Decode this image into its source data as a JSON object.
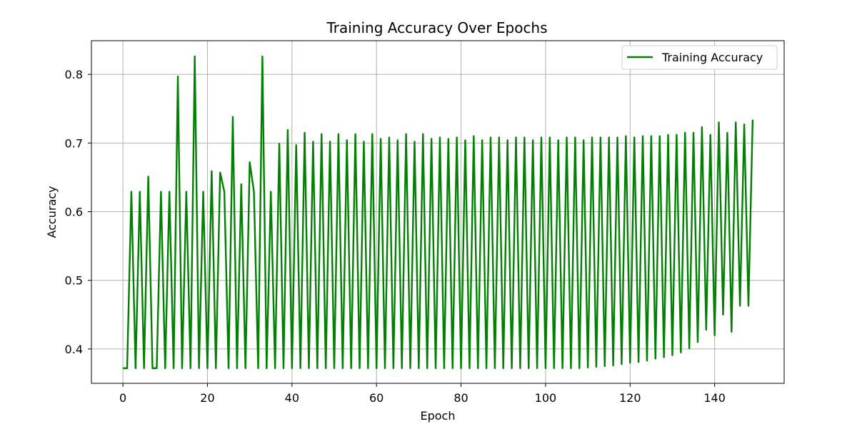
{
  "chart_data": {
    "type": "line",
    "title": "Training Accuracy Over Epochs",
    "xlabel": "Epoch",
    "ylabel": "Accuracy",
    "xlim": [
      -7.45,
      156.45
    ],
    "ylim": [
      0.35,
      0.849
    ],
    "x_ticks": [
      0,
      20,
      40,
      60,
      80,
      100,
      120,
      140
    ],
    "y_ticks": [
      0.4,
      0.5,
      0.6,
      0.7,
      0.8
    ],
    "grid": true,
    "legend_position": "top-right",
    "series": [
      {
        "name": "Training Accuracy",
        "color": "#008000",
        "x": [
          0,
          1,
          2,
          3,
          4,
          5,
          6,
          7,
          8,
          9,
          10,
          11,
          12,
          13,
          14,
          15,
          16,
          17,
          18,
          19,
          20,
          21,
          22,
          23,
          24,
          25,
          26,
          27,
          28,
          29,
          30,
          31,
          32,
          33,
          34,
          35,
          36,
          37,
          38,
          39,
          40,
          41,
          42,
          43,
          44,
          45,
          46,
          47,
          48,
          49,
          50,
          51,
          52,
          53,
          54,
          55,
          56,
          57,
          58,
          59,
          60,
          61,
          62,
          63,
          64,
          65,
          66,
          67,
          68,
          69,
          70,
          71,
          72,
          73,
          74,
          75,
          76,
          77,
          78,
          79,
          80,
          81,
          82,
          83,
          84,
          85,
          86,
          87,
          88,
          89,
          90,
          91,
          92,
          93,
          94,
          95,
          96,
          97,
          98,
          99,
          100,
          101,
          102,
          103,
          104,
          105,
          106,
          107,
          108,
          109,
          110,
          111,
          112,
          113,
          114,
          115,
          116,
          117,
          118,
          119,
          120,
          121,
          122,
          123,
          124,
          125,
          126,
          127,
          128,
          129,
          130,
          131,
          132,
          133,
          134,
          135,
          136,
          137,
          138,
          139,
          140,
          141,
          142,
          143,
          144,
          145,
          146,
          147,
          148,
          149
        ],
        "values": [
          0.372,
          0.372,
          0.629,
          0.372,
          0.629,
          0.372,
          0.651,
          0.372,
          0.372,
          0.629,
          0.372,
          0.629,
          0.372,
          0.797,
          0.372,
          0.629,
          0.372,
          0.826,
          0.372,
          0.629,
          0.372,
          0.659,
          0.372,
          0.657,
          0.629,
          0.372,
          0.738,
          0.372,
          0.64,
          0.372,
          0.672,
          0.629,
          0.372,
          0.826,
          0.372,
          0.629,
          0.372,
          0.699,
          0.372,
          0.719,
          0.372,
          0.697,
          0.372,
          0.715,
          0.372,
          0.702,
          0.372,
          0.713,
          0.372,
          0.702,
          0.372,
          0.713,
          0.372,
          0.704,
          0.372,
          0.713,
          0.372,
          0.702,
          0.372,
          0.713,
          0.372,
          0.706,
          0.372,
          0.708,
          0.372,
          0.704,
          0.372,
          0.713,
          0.372,
          0.702,
          0.372,
          0.713,
          0.372,
          0.706,
          0.372,
          0.708,
          0.372,
          0.706,
          0.372,
          0.708,
          0.372,
          0.704,
          0.372,
          0.71,
          0.372,
          0.704,
          0.372,
          0.708,
          0.372,
          0.708,
          0.372,
          0.704,
          0.372,
          0.708,
          0.372,
          0.708,
          0.372,
          0.704,
          0.372,
          0.708,
          0.372,
          0.708,
          0.372,
          0.704,
          0.372,
          0.708,
          0.372,
          0.708,
          0.372,
          0.704,
          0.373,
          0.708,
          0.374,
          0.708,
          0.375,
          0.708,
          0.376,
          0.708,
          0.378,
          0.71,
          0.38,
          0.708,
          0.381,
          0.71,
          0.383,
          0.71,
          0.386,
          0.71,
          0.388,
          0.712,
          0.391,
          0.712,
          0.395,
          0.715,
          0.401,
          0.715,
          0.41,
          0.723,
          0.428,
          0.712,
          0.42,
          0.73,
          0.45,
          0.715,
          0.425,
          0.73,
          0.463,
          0.727,
          0.463,
          0.734
        ]
      }
    ]
  }
}
